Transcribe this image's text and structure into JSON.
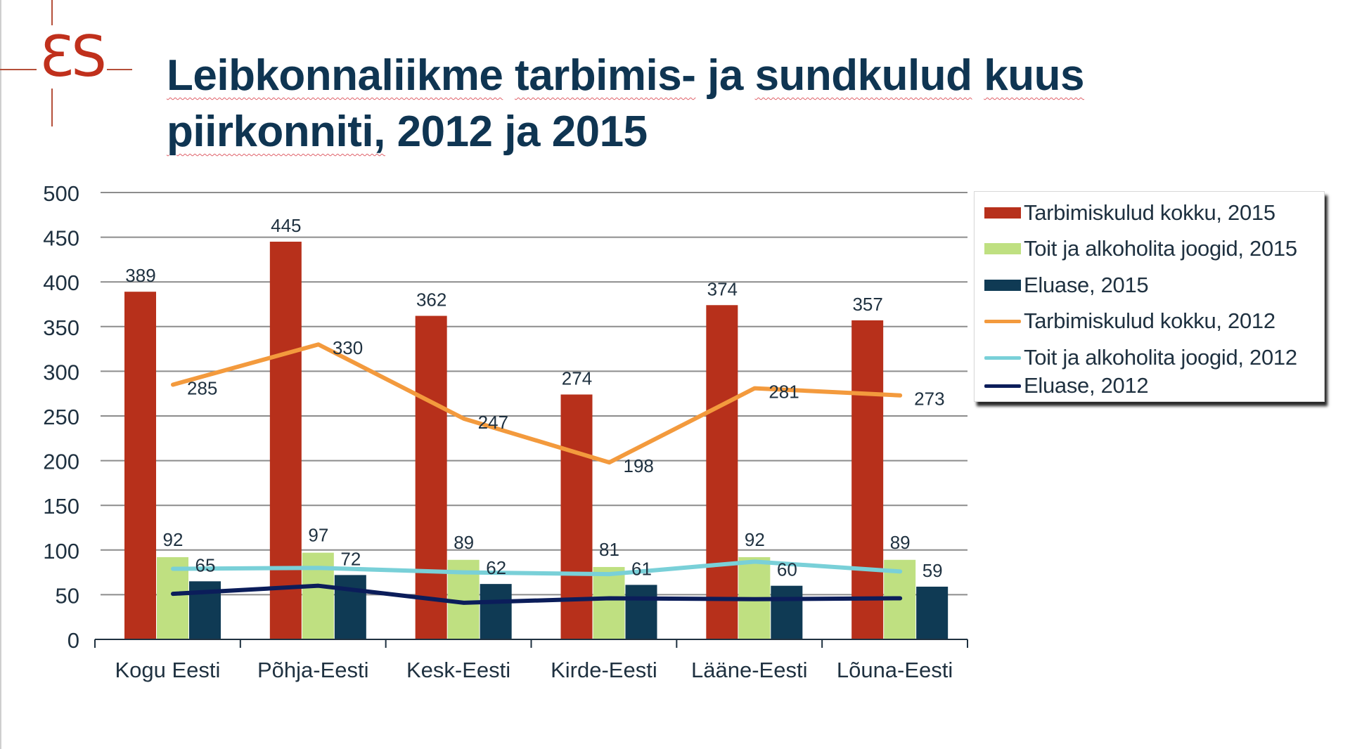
{
  "title": {
    "line1_words": [
      "Leibkonnaliikme",
      "tarbimis-",
      "ja",
      "sundkulud",
      "kuus"
    ],
    "line2_words": [
      "piirkonniti,",
      "2012 ja 2015"
    ]
  },
  "logo": {
    "text": "ƐS",
    "icon": "es-logo-crosshair-icon",
    "color": "#c0301c"
  },
  "legend": {
    "items": [
      {
        "label": "Tarbimiskulud kokku, 2015",
        "kind": "bar",
        "color": "#b7301b"
      },
      {
        "label": "Toit ja alkoholita joogid, 2015",
        "kind": "bar",
        "color": "#bfe081"
      },
      {
        "label": "Eluase, 2015",
        "kind": "bar",
        "color": "#0f3a54"
      },
      {
        "label": "Tarbimiskulud kokku, 2012",
        "kind": "line",
        "color": "#f39a3d"
      },
      {
        "label": "Toit ja alkoholita joogid, 2012",
        "kind": "line",
        "color": "#79d0d8"
      },
      {
        "label": "Eluase, 2012",
        "kind": "line",
        "color": "#0b1d5a"
      }
    ]
  },
  "chart_data": {
    "type": "bar",
    "title": "Leibkonnaliikme tarbimis- ja sundkulud kuus piirkonniti, 2012 ja 2015",
    "xlabel": "",
    "ylabel": "",
    "ylim": [
      0,
      500
    ],
    "yticks": [
      0,
      50,
      100,
      150,
      200,
      250,
      300,
      350,
      400,
      450,
      500
    ],
    "grid": true,
    "legend_position": "right",
    "categories": [
      "Kogu Eesti",
      "Põhja-Eesti",
      "Kesk-Eesti",
      "Kirde-Eesti",
      "Lääne-Eesti",
      "Lõuna-Eesti"
    ],
    "series": [
      {
        "name": "Tarbimiskulud kokku, 2015",
        "type": "bar",
        "color": "#b7301b",
        "values": [
          389,
          445,
          362,
          274,
          374,
          357
        ],
        "labels_shown": true
      },
      {
        "name": "Toit ja alkoholita joogid, 2015",
        "type": "bar",
        "color": "#bfe081",
        "values": [
          92,
          97,
          89,
          81,
          92,
          89
        ],
        "labels_shown": true
      },
      {
        "name": "Eluase, 2015",
        "type": "bar",
        "color": "#0f3a54",
        "values": [
          65,
          72,
          62,
          61,
          60,
          59
        ],
        "labels_shown": true
      },
      {
        "name": "Tarbimiskulud kokku, 2012",
        "type": "line",
        "color": "#f39a3d",
        "values": [
          285,
          330,
          247,
          198,
          281,
          273
        ],
        "labels_shown": true
      },
      {
        "name": "Toit ja alkoholita joogid, 2012",
        "type": "line",
        "color": "#79d0d8",
        "values": [
          79,
          80,
          75,
          73,
          87,
          76
        ],
        "labels_shown": false
      },
      {
        "name": "Eluase, 2012",
        "type": "line",
        "color": "#0b1d5a",
        "values": [
          51,
          60,
          41,
          46,
          45,
          46
        ],
        "labels_shown": false
      }
    ]
  }
}
